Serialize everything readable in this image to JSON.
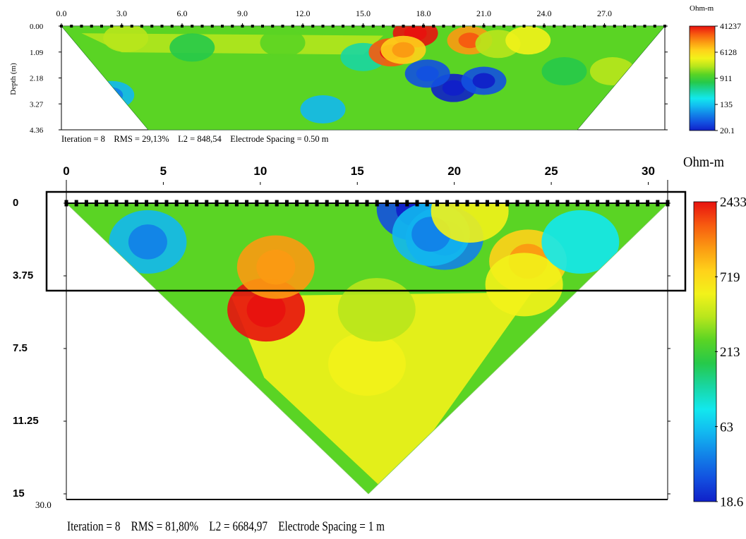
{
  "colors": {
    "scale_top_to_bottom": [
      "#e8120f",
      "#f75a10",
      "#fb9a12",
      "#ffd21a",
      "#f2f21a",
      "#b8e61c",
      "#5ad424",
      "#26c94a",
      "#19d6a2",
      "#12e8ee",
      "#12b8f0",
      "#1282e8",
      "#1250e0",
      "#1020c8"
    ],
    "frame": "#000000",
    "background": "#ffffff"
  },
  "chart_data": [
    {
      "type": "heatmap",
      "title": "",
      "xlabel": "",
      "ylabel": "Depth (m)",
      "x_ticks": [
        "0.0",
        "3.0",
        "6.0",
        "9.0",
        "12.0",
        "15.0",
        "18.0",
        "21.0",
        "24.0",
        "27.0"
      ],
      "x_tick_values": [
        0,
        3,
        6,
        9,
        12,
        15,
        18,
        21,
        24,
        27
      ],
      "xlim": [
        0,
        30
      ],
      "y_ticks": [
        "0.00",
        "1.09",
        "2.18",
        "3.27",
        "4.36"
      ],
      "y_tick_values": [
        0,
        1.09,
        2.18,
        3.27,
        4.36
      ],
      "ylim": [
        0,
        4.36
      ],
      "y_inverted": true,
      "colorbar": {
        "unit": "Ohm-m",
        "labels": [
          "41237",
          "6128",
          "911",
          "135",
          "20.1"
        ],
        "label_values": [
          41237,
          6128,
          911,
          135,
          20.1
        ],
        "scale": "log"
      },
      "caption": "Iteration = 8    RMS = 29,13%    L2 = 848,54    Electrode Spacing = 0.50 m",
      "anomalies": [
        {
          "x": 2.5,
          "depth": 2.9,
          "log_res": 0.2
        },
        {
          "x": 3.2,
          "depth": 0.5,
          "log_res": 0.6
        },
        {
          "x": 6.5,
          "depth": 0.9,
          "log_res": 0.45
        },
        {
          "x": 11.0,
          "depth": 0.7,
          "log_res": 0.55
        },
        {
          "x": 13.0,
          "depth": 3.5,
          "log_res": 0.25
        },
        {
          "x": 15.0,
          "depth": 1.3,
          "log_res": 0.35
        },
        {
          "x": 16.4,
          "depth": 1.1,
          "log_res": 0.95
        },
        {
          "x": 17.6,
          "depth": 0.3,
          "log_res": 1.0
        },
        {
          "x": 17.0,
          "depth": 1.0,
          "log_res": 0.8
        },
        {
          "x": 19.5,
          "depth": 2.6,
          "log_res": 0.0
        },
        {
          "x": 18.2,
          "depth": 2.0,
          "log_res": 0.1
        },
        {
          "x": 21.0,
          "depth": 2.3,
          "log_res": 0.08
        },
        {
          "x": 20.3,
          "depth": 0.6,
          "log_res": 0.85
        },
        {
          "x": 21.7,
          "depth": 0.75,
          "log_res": 0.62
        },
        {
          "x": 23.2,
          "depth": 0.6,
          "log_res": 0.7
        },
        {
          "x": 25.0,
          "depth": 1.9,
          "log_res": 0.45
        },
        {
          "x": 27.4,
          "depth": 1.9,
          "log_res": 0.6
        }
      ]
    },
    {
      "type": "heatmap",
      "title": "",
      "xlabel": "",
      "ylabel": "",
      "x_ticks": [
        "0",
        "5",
        "10",
        "15",
        "20",
        "25",
        "30"
      ],
      "x_tick_values": [
        0,
        5,
        10,
        15,
        20,
        25,
        30
      ],
      "xlim": [
        0,
        31
      ],
      "y_ticks": [
        "0",
        "3.75",
        "7.5",
        "11.25",
        "15"
      ],
      "y_tick_values": [
        0,
        3.75,
        7.5,
        11.25,
        15
      ],
      "ylim": [
        0,
        15
      ],
      "y_inverted": true,
      "bottom_axis_remnant": "30.0",
      "colorbar": {
        "unit": "Ohm-m",
        "labels": [
          "2433",
          "719",
          "213",
          "63",
          "18.6"
        ],
        "label_values": [
          2433,
          719,
          213,
          63,
          18.6
        ],
        "scale": "log"
      },
      "caption": "Iteration = 8    RMS = 81,80%    L2 = 6684,97    Electrode Spacing = 1 m",
      "highlight_box": {
        "x_range": [
          -1,
          31.5
        ],
        "depth_range": [
          -0.5,
          3.5
        ]
      },
      "anomalies": [
        {
          "x": 4.2,
          "depth": 2.0,
          "log_res": 0.2
        },
        {
          "x": 10.3,
          "depth": 5.5,
          "log_res": 0.98
        },
        {
          "x": 10.8,
          "depth": 3.3,
          "log_res": 0.82
        },
        {
          "x": 15.5,
          "depth": 8.3,
          "log_res": 0.72
        },
        {
          "x": 16.0,
          "depth": 5.5,
          "log_res": 0.6
        },
        {
          "x": 18.0,
          "depth": 0.3,
          "log_res": 0.05
        },
        {
          "x": 19.5,
          "depth": 1.8,
          "log_res": 0.12
        },
        {
          "x": 18.8,
          "depth": 1.6,
          "log_res": 0.2
        },
        {
          "x": 20.8,
          "depth": 0.4,
          "log_res": 0.7
        },
        {
          "x": 23.8,
          "depth": 3.0,
          "log_res": 0.78
        },
        {
          "x": 23.6,
          "depth": 4.2,
          "log_res": 0.7
        },
        {
          "x": 26.5,
          "depth": 2.0,
          "log_res": 0.3
        }
      ]
    }
  ]
}
